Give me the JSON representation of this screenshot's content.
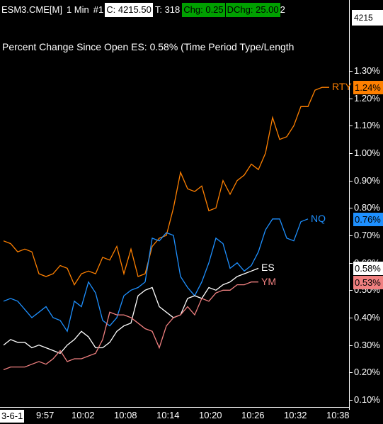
{
  "header": {
    "symbol": "ESM3.CME[M]",
    "interval": "1 Min",
    "chart_number": "#1",
    "close": "C: 4215.50",
    "tick": "T: 318",
    "change": "Chg: 0.25",
    "dchange": "DChg: 25.00",
    "overflow": "2",
    "edge_price": "4215"
  },
  "study_label": "Percent Change Since Open  ES: 0.58%   (Time Period Type/Length",
  "date_label": "3-6-1",
  "chart_data": {
    "type": "line",
    "xlabel": "",
    "ylabel": "",
    "y_ticks": [
      "1.30%",
      "1.20%",
      "1.10%",
      "1.00%",
      "0.90%",
      "0.80%",
      "0.70%",
      "0.60%",
      "0.50%",
      "0.40%",
      "0.30%",
      "0.20%",
      "0.10%"
    ],
    "y_values": [
      1.3,
      1.2,
      1.1,
      1.0,
      0.9,
      0.8,
      0.7,
      0.6,
      0.5,
      0.4,
      0.3,
      0.2,
      0.1
    ],
    "ylim": [
      0.1,
      1.3
    ],
    "x_ticks": [
      "9:57",
      "10:02",
      "10:08",
      "10:14",
      "10:20",
      "10:26",
      "10:32",
      "10:38"
    ],
    "x_tick_minutes": [
      6,
      11,
      17,
      23,
      29,
      35,
      41,
      47
    ],
    "grid": false,
    "series": [
      {
        "name": "RTY",
        "color": "#ff8000",
        "value_label": "1.24%",
        "values": [
          0.68,
          0.67,
          0.64,
          0.65,
          0.64,
          0.56,
          0.55,
          0.56,
          0.59,
          0.58,
          0.52,
          0.56,
          0.57,
          0.56,
          0.62,
          0.61,
          0.66,
          0.56,
          0.65,
          0.55,
          0.56,
          0.66,
          0.69,
          0.7,
          0.8,
          0.93,
          0.87,
          0.86,
          0.88,
          0.79,
          0.8,
          0.9,
          0.85,
          0.9,
          0.92,
          0.96,
          0.94,
          1.0,
          1.13,
          1.05,
          1.06,
          1.1,
          1.17,
          1.17,
          1.23,
          1.24,
          1.24
        ]
      },
      {
        "name": "NQ",
        "color": "#1e90ff",
        "value_label": "0.76%",
        "values": [
          0.46,
          0.47,
          0.46,
          0.43,
          0.4,
          0.42,
          0.44,
          0.4,
          0.39,
          0.35,
          0.46,
          0.44,
          0.53,
          0.49,
          0.39,
          0.37,
          0.4,
          0.48,
          0.5,
          0.51,
          0.53,
          0.69,
          0.68,
          0.71,
          0.7,
          0.55,
          0.51,
          0.48,
          0.53,
          0.6,
          0.69,
          0.67,
          0.58,
          0.6,
          0.57,
          0.59,
          0.64,
          0.72,
          0.76,
          0.76,
          0.69,
          0.68,
          0.75,
          0.76
        ]
      },
      {
        "name": "ES",
        "color": "#ffffff",
        "value_label": "0.58%",
        "values": [
          0.3,
          0.32,
          0.31,
          0.31,
          0.29,
          0.3,
          0.29,
          0.28,
          0.27,
          0.3,
          0.32,
          0.35,
          0.33,
          0.29,
          0.29,
          0.31,
          0.35,
          0.37,
          0.38,
          0.48,
          0.5,
          0.51,
          0.44,
          0.42,
          0.4,
          0.41,
          0.47,
          0.48,
          0.47,
          0.51,
          0.5,
          0.52,
          0.53,
          0.55,
          0.56,
          0.57,
          0.58
        ]
      },
      {
        "name": "YM",
        "color": "#f08080",
        "value_label": "0.53%",
        "values": [
          0.21,
          0.22,
          0.22,
          0.22,
          0.23,
          0.24,
          0.23,
          0.25,
          0.28,
          0.24,
          0.25,
          0.25,
          0.26,
          0.27,
          0.32,
          0.42,
          0.41,
          0.41,
          0.4,
          0.38,
          0.36,
          0.35,
          0.29,
          0.37,
          0.4,
          0.41,
          0.44,
          0.41,
          0.47,
          0.46,
          0.49,
          0.5,
          0.5,
          0.52,
          0.52,
          0.53,
          0.53
        ]
      }
    ]
  }
}
